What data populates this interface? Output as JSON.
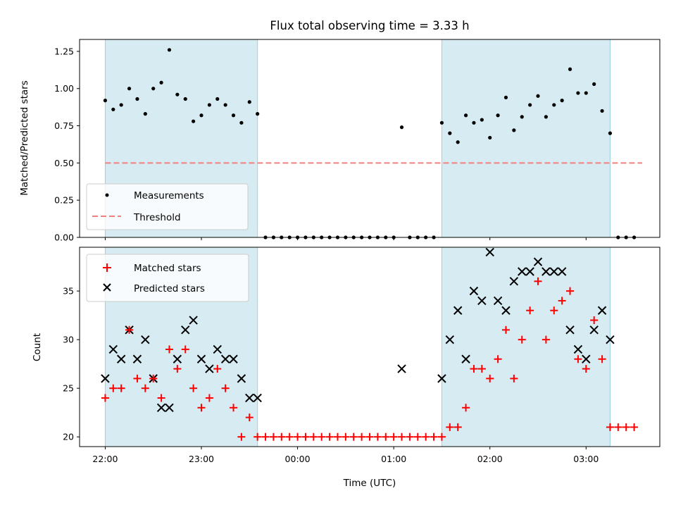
{
  "chart_data": [
    {
      "type": "scatter",
      "title": "Flux total observing time = 3.33 h",
      "xlabel": "",
      "ylabel": "Matched/Predicted stars",
      "xlim": [
        "21:44",
        "03:46"
      ],
      "ylim": [
        0,
        1.33
      ],
      "yticks": [
        "0.00",
        "0.25",
        "0.50",
        "0.75",
        "1.00",
        "1.25"
      ],
      "shaded_spans": [
        [
          "22:00",
          "23:35"
        ],
        [
          "01:30",
          "03:15"
        ]
      ],
      "legend_position": "lower-left",
      "threshold": {
        "name": "Threshold",
        "y": 0.5,
        "x_start": "22:00",
        "x_end": "03:35",
        "color": "#f08080"
      },
      "series": [
        {
          "name": "Measurements",
          "color": "#000000",
          "x": [
            "22:00",
            "22:05",
            "22:10",
            "22:15",
            "22:20",
            "22:25",
            "22:30",
            "22:35",
            "22:40",
            "22:45",
            "22:50",
            "22:55",
            "23:00",
            "23:05",
            "23:10",
            "23:15",
            "23:20",
            "23:25",
            "23:30",
            "23:35",
            "23:40",
            "23:45",
            "23:50",
            "23:55",
            "00:00",
            "00:05",
            "00:10",
            "00:15",
            "00:20",
            "00:25",
            "00:30",
            "00:35",
            "00:40",
            "00:45",
            "00:50",
            "00:55",
            "01:00",
            "01:05",
            "01:10",
            "01:15",
            "01:20",
            "01:25",
            "01:30",
            "01:35",
            "01:40",
            "01:45",
            "01:50",
            "01:55",
            "02:00",
            "02:05",
            "02:10",
            "02:15",
            "02:20",
            "02:25",
            "02:30",
            "02:35",
            "02:40",
            "02:45",
            "02:50",
            "02:55",
            "03:00",
            "03:05",
            "03:10",
            "03:15",
            "03:20",
            "03:25",
            "03:30"
          ],
          "y": [
            0.92,
            0.86,
            0.89,
            1.0,
            0.93,
            0.83,
            1.0,
            1.04,
            1.26,
            0.96,
            0.93,
            0.78,
            0.82,
            0.89,
            0.93,
            0.89,
            0.82,
            0.77,
            0.91,
            0.83,
            0.0,
            0.0,
            0.0,
            0.0,
            0.0,
            0.0,
            0.0,
            0.0,
            0.0,
            0.0,
            0.0,
            0.0,
            0.0,
            0.0,
            0.0,
            0.0,
            0.0,
            0.74,
            0.0,
            0.0,
            0.0,
            0.0,
            0.77,
            0.7,
            0.64,
            0.82,
            0.77,
            0.79,
            0.67,
            0.82,
            0.94,
            0.72,
            0.81,
            0.89,
            0.95,
            0.81,
            0.89,
            0.92,
            1.13,
            0.97,
            0.97,
            1.03,
            0.85,
            0.7,
            0.0,
            0.0,
            0.0
          ]
        }
      ]
    },
    {
      "type": "scatter",
      "title": "",
      "xlabel": "Time (UTC)",
      "ylabel": "Count",
      "xlim": [
        "21:44",
        "03:46"
      ],
      "ylim": [
        19,
        39.5
      ],
      "yticks": [
        "20",
        "25",
        "30",
        "35"
      ],
      "xticks": [
        "22:00",
        "23:00",
        "00:00",
        "01:00",
        "02:00",
        "03:00"
      ],
      "shaded_spans": [
        [
          "22:00",
          "23:35"
        ],
        [
          "01:30",
          "03:15"
        ]
      ],
      "legend_position": "upper-left",
      "series": [
        {
          "name": "Matched stars",
          "marker": "plus",
          "color": "#ff0000",
          "x": [
            "22:00",
            "22:05",
            "22:10",
            "22:15",
            "22:20",
            "22:25",
            "22:30",
            "22:35",
            "22:40",
            "22:45",
            "22:50",
            "22:55",
            "23:00",
            "23:05",
            "23:10",
            "23:15",
            "23:20",
            "23:25",
            "23:30",
            "23:35",
            "23:40",
            "23:45",
            "23:50",
            "23:55",
            "00:00",
            "00:05",
            "00:10",
            "00:15",
            "00:20",
            "00:25",
            "00:30",
            "00:35",
            "00:40",
            "00:45",
            "00:50",
            "00:55",
            "01:00",
            "01:05",
            "01:10",
            "01:15",
            "01:20",
            "01:25",
            "01:30",
            "01:35",
            "01:40",
            "01:45",
            "01:50",
            "01:55",
            "02:00",
            "02:05",
            "02:10",
            "02:15",
            "02:20",
            "02:25",
            "02:30",
            "02:35",
            "02:40",
            "02:45",
            "02:50",
            "02:55",
            "03:00",
            "03:05",
            "03:10",
            "03:15",
            "03:20",
            "03:25",
            "03:30"
          ],
          "y": [
            24,
            25,
            25,
            31,
            26,
            25,
            26,
            24,
            29,
            27,
            29,
            25,
            23,
            24,
            27,
            25,
            23,
            20,
            22,
            20,
            20,
            20,
            20,
            20,
            20,
            20,
            20,
            20,
            20,
            20,
            20,
            20,
            20,
            20,
            20,
            20,
            20,
            20,
            20,
            20,
            20,
            20,
            20,
            21,
            21,
            23,
            27,
            27,
            26,
            28,
            31,
            26,
            30,
            33,
            36,
            30,
            33,
            34,
            35,
            28,
            27,
            32,
            28,
            21,
            21,
            21,
            21
          ]
        },
        {
          "name": "Predicted stars",
          "marker": "x",
          "color": "#000000",
          "x": [
            "22:00",
            "22:05",
            "22:10",
            "22:15",
            "22:20",
            "22:25",
            "22:30",
            "22:35",
            "22:40",
            "22:45",
            "22:50",
            "22:55",
            "23:00",
            "23:05",
            "23:10",
            "23:15",
            "23:20",
            "23:25",
            "23:30",
            "23:35",
            "01:05",
            "01:30",
            "01:35",
            "01:40",
            "01:45",
            "01:50",
            "01:55",
            "02:00",
            "02:05",
            "02:10",
            "02:15",
            "02:20",
            "02:25",
            "02:30",
            "02:35",
            "02:40",
            "02:45",
            "02:50",
            "02:55",
            "03:00",
            "03:05",
            "03:10",
            "03:15"
          ],
          "y": [
            26,
            29,
            28,
            31,
            28,
            30,
            26,
            23,
            23,
            28,
            31,
            32,
            28,
            27,
            29,
            28,
            28,
            26,
            24,
            24,
            27,
            26,
            30,
            33,
            28,
            35,
            34,
            39,
            34,
            33,
            36,
            37,
            37,
            38,
            37,
            37,
            37,
            31,
            29,
            28,
            31,
            33,
            30
          ]
        }
      ]
    }
  ]
}
